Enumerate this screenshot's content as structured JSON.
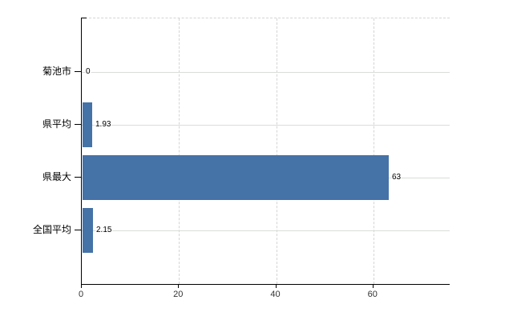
{
  "chart_data": {
    "type": "bar",
    "orientation": "horizontal",
    "title": "",
    "xlabel": "",
    "ylabel": "",
    "categories": [
      "菊池市",
      "県平均",
      "県最大",
      "全国平均"
    ],
    "values": [
      0,
      1.93,
      63,
      2.15
    ],
    "value_labels": [
      "0",
      "1.93",
      "63",
      "2.15"
    ],
    "xticks": [
      0,
      20,
      40,
      60
    ],
    "xtick_labels": [
      "0",
      "20",
      "40",
      "60"
    ],
    "xlim": [
      0,
      75.7
    ],
    "grid": true,
    "legend": false,
    "colors": {
      "bar": "#4572a7",
      "h_gridline": "#d9ddd9",
      "v_gridline": "#d4d4d4",
      "axis": "#000000",
      "category_label": "#000000",
      "value_label": "#000000",
      "xtick_label": "#333333",
      "background": "#ffffff"
    }
  }
}
